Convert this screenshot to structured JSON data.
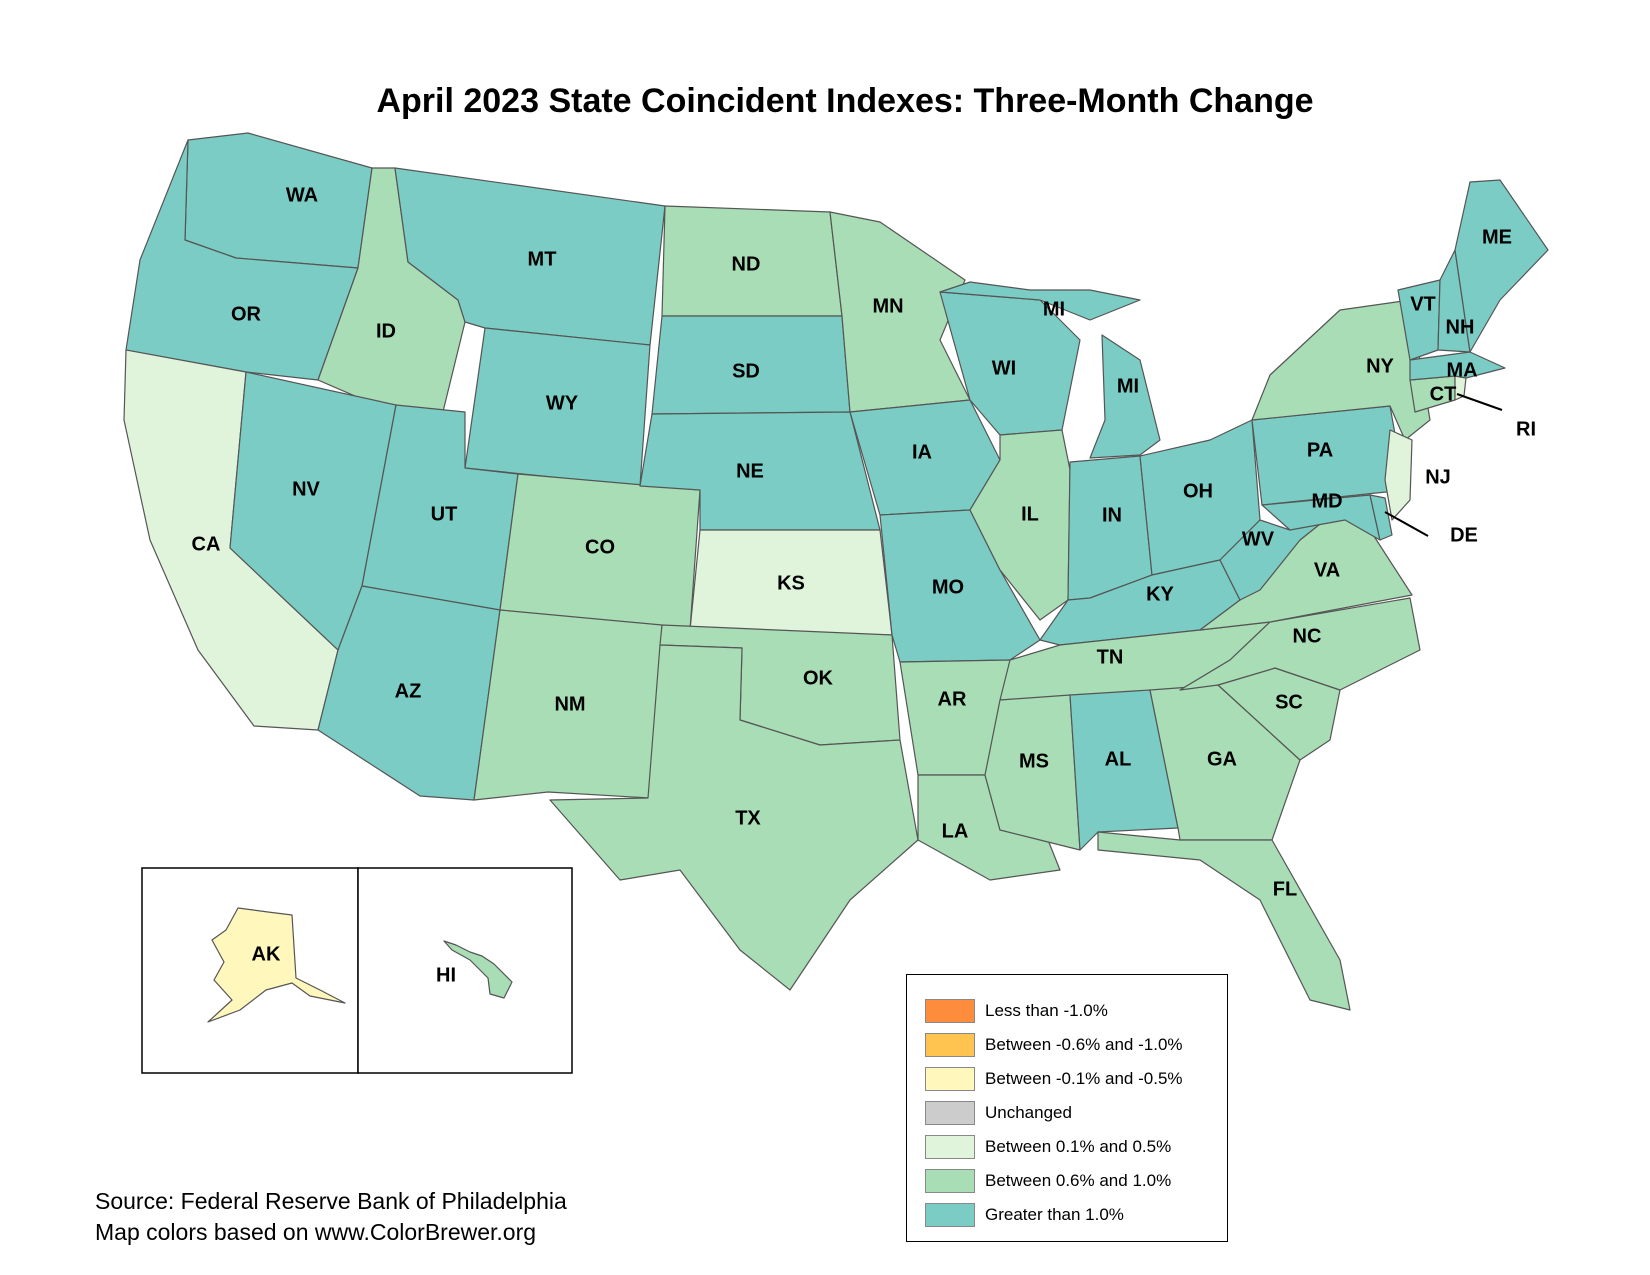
{
  "title": "April 2023 State Coincident Indexes: Three-Month Change",
  "colors": {
    "less_than_neg1": "#fd8d3c",
    "neg06_to_neg10": "#fec44f",
    "neg01_to_neg05": "#fff7bc",
    "unchanged": "#cccccc",
    "p01_to_p05": "#e0f3db",
    "p06_to_p10": "#a8ddb5",
    "greater_than_1": "#7accc4",
    "border": "#555555"
  },
  "legend": {
    "items": [
      {
        "label": "Less than -1.0%",
        "color": "#fd8d3c"
      },
      {
        "label": "Between -0.6% and -1.0%",
        "color": "#fec44f"
      },
      {
        "label": "Between -0.1% and -0.5%",
        "color": "#fff7bc"
      },
      {
        "label": "Unchanged",
        "color": "#cccccc"
      },
      {
        "label": "Between 0.1% and 0.5%",
        "color": "#e0f3db"
      },
      {
        "label": "Between 0.6% and 1.0%",
        "color": "#a8ddb5"
      },
      {
        "label": "Greater than 1.0%",
        "color": "#7accc4"
      }
    ]
  },
  "states": [
    {
      "abbr": "WA",
      "category": "Greater than 1.0%"
    },
    {
      "abbr": "OR",
      "category": "Greater than 1.0%"
    },
    {
      "abbr": "CA",
      "category": "Between 0.1% and 0.5%"
    },
    {
      "abbr": "ID",
      "category": "Between 0.6% and 1.0%"
    },
    {
      "abbr": "NV",
      "category": "Greater than 1.0%"
    },
    {
      "abbr": "MT",
      "category": "Greater than 1.0%"
    },
    {
      "abbr": "WY",
      "category": "Greater than 1.0%"
    },
    {
      "abbr": "UT",
      "category": "Greater than 1.0%"
    },
    {
      "abbr": "AZ",
      "category": "Greater than 1.0%"
    },
    {
      "abbr": "CO",
      "category": "Between 0.6% and 1.0%"
    },
    {
      "abbr": "NM",
      "category": "Between 0.6% and 1.0%"
    },
    {
      "abbr": "ND",
      "category": "Between 0.6% and 1.0%"
    },
    {
      "abbr": "SD",
      "category": "Greater than 1.0%"
    },
    {
      "abbr": "NE",
      "category": "Greater than 1.0%"
    },
    {
      "abbr": "KS",
      "category": "Between 0.1% and 0.5%"
    },
    {
      "abbr": "OK",
      "category": "Between 0.6% and 1.0%"
    },
    {
      "abbr": "TX",
      "category": "Between 0.6% and 1.0%"
    },
    {
      "abbr": "MN",
      "category": "Between 0.6% and 1.0%"
    },
    {
      "abbr": "IA",
      "category": "Greater than 1.0%"
    },
    {
      "abbr": "MO",
      "category": "Greater than 1.0%"
    },
    {
      "abbr": "AR",
      "category": "Between 0.6% and 1.0%"
    },
    {
      "abbr": "LA",
      "category": "Between 0.6% and 1.0%"
    },
    {
      "abbr": "WI",
      "category": "Greater than 1.0%"
    },
    {
      "abbr": "IL",
      "category": "Between 0.6% and 1.0%"
    },
    {
      "abbr": "MI",
      "category": "Greater than 1.0%"
    },
    {
      "abbr": "IN",
      "category": "Greater than 1.0%"
    },
    {
      "abbr": "OH",
      "category": "Greater than 1.0%"
    },
    {
      "abbr": "KY",
      "category": "Greater than 1.0%"
    },
    {
      "abbr": "TN",
      "category": "Between 0.6% and 1.0%"
    },
    {
      "abbr": "MS",
      "category": "Between 0.6% and 1.0%"
    },
    {
      "abbr": "AL",
      "category": "Greater than 1.0%"
    },
    {
      "abbr": "GA",
      "category": "Between 0.6% and 1.0%"
    },
    {
      "abbr": "FL",
      "category": "Between 0.6% and 1.0%"
    },
    {
      "abbr": "SC",
      "category": "Between 0.6% and 1.0%"
    },
    {
      "abbr": "NC",
      "category": "Between 0.6% and 1.0%"
    },
    {
      "abbr": "VA",
      "category": "Between 0.6% and 1.0%"
    },
    {
      "abbr": "WV",
      "category": "Greater than 1.0%"
    },
    {
      "abbr": "PA",
      "category": "Greater than 1.0%"
    },
    {
      "abbr": "NY",
      "category": "Between 0.6% and 1.0%"
    },
    {
      "abbr": "MD",
      "category": "Greater than 1.0%"
    },
    {
      "abbr": "DE",
      "category": "Greater than 1.0%"
    },
    {
      "abbr": "NJ",
      "category": "Between 0.1% and 0.5%"
    },
    {
      "abbr": "CT",
      "category": "Between 0.6% and 1.0%"
    },
    {
      "abbr": "RI",
      "category": "Between 0.1% and 0.5%"
    },
    {
      "abbr": "MA",
      "category": "Greater than 1.0%"
    },
    {
      "abbr": "VT",
      "category": "Greater than 1.0%"
    },
    {
      "abbr": "NH",
      "category": "Greater than 1.0%"
    },
    {
      "abbr": "ME",
      "category": "Greater than 1.0%"
    },
    {
      "abbr": "AK",
      "category": "Between -0.1% and -0.5%"
    },
    {
      "abbr": "HI",
      "category": "Between 0.6% and 1.0%"
    }
  ],
  "source": {
    "line1": "Source: Federal Reserve Bank of Philadelphia",
    "line2": "Map colors based on www.ColorBrewer.org"
  }
}
